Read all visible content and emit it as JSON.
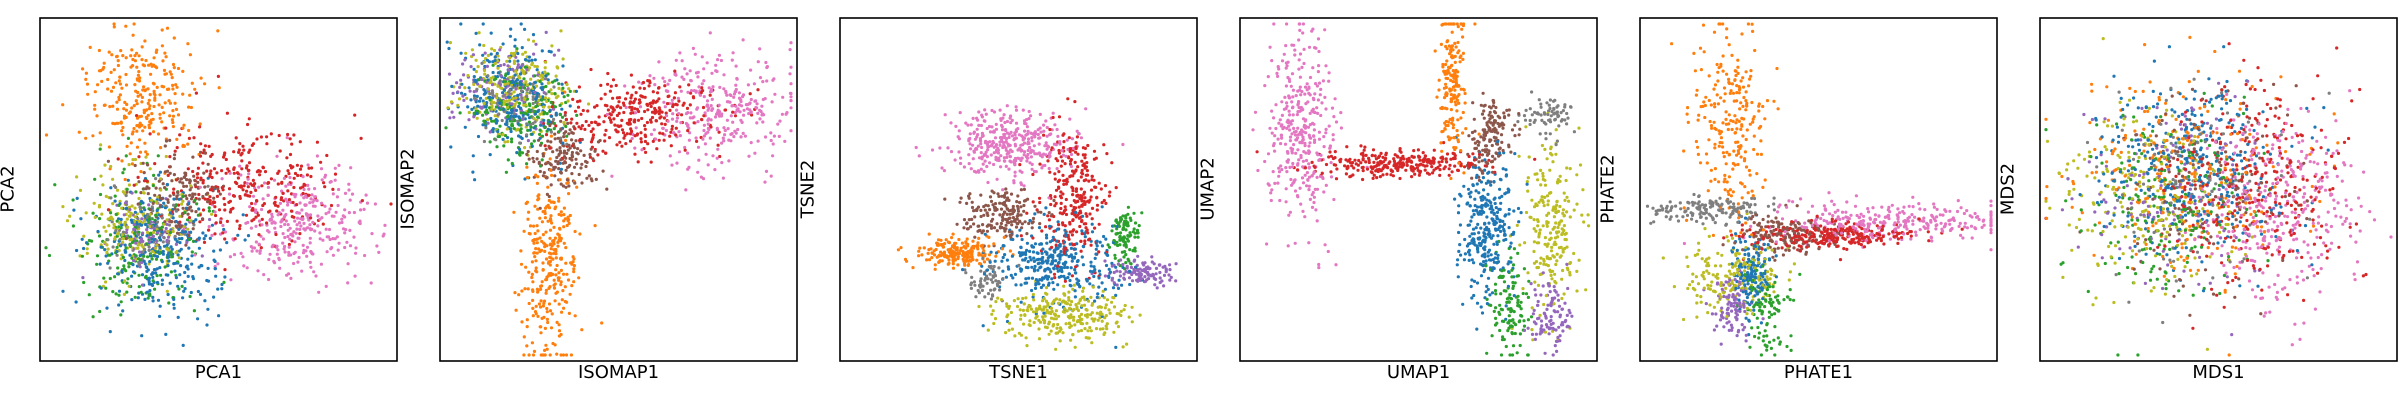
{
  "chart_data": [
    {
      "type": "scatter",
      "xlabel": "PCA1",
      "ylabel": "PCA2",
      "xlim": [
        0,
        100
      ],
      "ylim": [
        0,
        100
      ],
      "grid": false,
      "clusters": [
        {
          "color": "#ff7f0e",
          "cx": 28,
          "cy": 22,
          "sx": 8,
          "sy": 10,
          "n": 260
        },
        {
          "color": "#d62728",
          "cx": 58,
          "cy": 48,
          "sx": 14,
          "sy": 8,
          "n": 300
        },
        {
          "color": "#e377c2",
          "cx": 72,
          "cy": 60,
          "sx": 11,
          "sy": 9,
          "n": 320
        },
        {
          "color": "#2ca02c",
          "cx": 28,
          "cy": 66,
          "sx": 9,
          "sy": 10,
          "n": 200
        },
        {
          "color": "#bcbd22",
          "cx": 26,
          "cy": 60,
          "sx": 8,
          "sy": 8,
          "n": 200
        },
        {
          "color": "#1f77b4",
          "cx": 32,
          "cy": 68,
          "sx": 9,
          "sy": 10,
          "n": 300
        },
        {
          "color": "#8c564b",
          "cx": 38,
          "cy": 52,
          "sx": 6,
          "sy": 7,
          "n": 140
        },
        {
          "color": "#7f7f7f",
          "cx": 30,
          "cy": 62,
          "sx": 6,
          "sy": 6,
          "n": 80
        },
        {
          "color": "#9467bd",
          "cx": 31,
          "cy": 64,
          "sx": 6,
          "sy": 6,
          "n": 80
        }
      ]
    },
    {
      "type": "scatter",
      "xlabel": "ISOMAP1",
      "ylabel": "ISOMAP2",
      "xlim": [
        0,
        100
      ],
      "ylim": [
        0,
        100
      ],
      "grid": false,
      "clusters": [
        {
          "color": "#ff7f0e",
          "cx": 30,
          "cy": 70,
          "sx": 4,
          "sy": 16,
          "n": 300
        },
        {
          "color": "#d62728",
          "cx": 56,
          "cy": 28,
          "sx": 12,
          "sy": 6,
          "n": 300
        },
        {
          "color": "#e377c2",
          "cx": 78,
          "cy": 26,
          "sx": 11,
          "sy": 8,
          "n": 320
        },
        {
          "color": "#1f77b4",
          "cx": 18,
          "cy": 22,
          "sx": 8,
          "sy": 9,
          "n": 260
        },
        {
          "color": "#bcbd22",
          "cx": 20,
          "cy": 20,
          "sx": 8,
          "sy": 7,
          "n": 220
        },
        {
          "color": "#2ca02c",
          "cx": 22,
          "cy": 26,
          "sx": 7,
          "sy": 7,
          "n": 180
        },
        {
          "color": "#9467bd",
          "cx": 16,
          "cy": 20,
          "sx": 7,
          "sy": 6,
          "n": 120
        },
        {
          "color": "#8c564b",
          "cx": 34,
          "cy": 40,
          "sx": 5,
          "sy": 5,
          "n": 150
        },
        {
          "color": "#7f7f7f",
          "cx": 20,
          "cy": 24,
          "sx": 6,
          "sy": 6,
          "n": 80
        }
      ]
    },
    {
      "type": "scatter",
      "xlabel": "TSNE1",
      "ylabel": "TSNE2",
      "xlim": [
        0,
        100
      ],
      "ylim": [
        0,
        100
      ],
      "grid": false,
      "clusters": [
        {
          "color": "#e377c2",
          "cx": 48,
          "cy": 36,
          "sx": 9,
          "sy": 5,
          "n": 360
        },
        {
          "color": "#d62728",
          "cx": 66,
          "cy": 52,
          "sx": 5,
          "sy": 10,
          "n": 280
        },
        {
          "color": "#8c564b",
          "cx": 44,
          "cy": 58,
          "sx": 6,
          "sy": 4,
          "n": 180
        },
        {
          "color": "#1f77b4",
          "cx": 61,
          "cy": 72,
          "sx": 9,
          "sy": 6,
          "n": 340
        },
        {
          "color": "#ff7f0e",
          "cx": 32,
          "cy": 69,
          "sx": 6,
          "sy": 2,
          "n": 200
        },
        {
          "color": "#bcbd22",
          "cx": 63,
          "cy": 88,
          "sx": 9,
          "sy": 4,
          "n": 260
        },
        {
          "color": "#2ca02c",
          "cx": 81,
          "cy": 64,
          "sx": 2,
          "sy": 4,
          "n": 100
        },
        {
          "color": "#9467bd",
          "cx": 86,
          "cy": 75,
          "sx": 5,
          "sy": 2,
          "n": 120
        },
        {
          "color": "#7f7f7f",
          "cx": 41,
          "cy": 77,
          "sx": 3,
          "sy": 3,
          "n": 60
        }
      ]
    },
    {
      "type": "scatter",
      "xlabel": "UMAP1",
      "ylabel": "UMAP2",
      "xlim": [
        0,
        100
      ],
      "ylim": [
        0,
        100
      ],
      "grid": false,
      "clusters": [
        {
          "color": "#e377c2",
          "cx": 16,
          "cy": 32,
          "sx": 5,
          "sy": 14,
          "n": 340
        },
        {
          "color": "#d62728",
          "cx": 44,
          "cy": 42,
          "sx": 12,
          "sy": 2,
          "n": 280
        },
        {
          "color": "#ff7f0e",
          "cx": 60,
          "cy": 18,
          "sx": 2,
          "sy": 12,
          "n": 180
        },
        {
          "color": "#8c564b",
          "cx": 71,
          "cy": 34,
          "sx": 3,
          "sy": 6,
          "n": 150
        },
        {
          "color": "#1f77b4",
          "cx": 70,
          "cy": 62,
          "sx": 4,
          "sy": 10,
          "n": 300
        },
        {
          "color": "#bcbd22",
          "cx": 88,
          "cy": 62,
          "sx": 4,
          "sy": 12,
          "n": 220
        },
        {
          "color": "#2ca02c",
          "cx": 76,
          "cy": 86,
          "sx": 3,
          "sy": 8,
          "n": 120
        },
        {
          "color": "#9467bd",
          "cx": 88,
          "cy": 88,
          "sx": 3,
          "sy": 6,
          "n": 100
        },
        {
          "color": "#7f7f7f",
          "cx": 88,
          "cy": 28,
          "sx": 4,
          "sy": 3,
          "n": 70
        }
      ]
    },
    {
      "type": "scatter",
      "xlabel": "PHATE1",
      "ylabel": "PHATE2",
      "xlim": [
        0,
        100
      ],
      "ylim": [
        0,
        100
      ],
      "grid": false,
      "clusters": [
        {
          "color": "#ff7f0e",
          "cx": 24,
          "cy": 30,
          "sx": 5,
          "sy": 16,
          "n": 240
        },
        {
          "color": "#e377c2",
          "cx": 72,
          "cy": 60,
          "sx": 18,
          "sy": 3,
          "n": 300
        },
        {
          "color": "#d62728",
          "cx": 52,
          "cy": 64,
          "sx": 12,
          "sy": 2,
          "n": 260
        },
        {
          "color": "#7f7f7f",
          "cx": 18,
          "cy": 56,
          "sx": 8,
          "sy": 2,
          "n": 150
        },
        {
          "color": "#8c564b",
          "cx": 40,
          "cy": 64,
          "sx": 6,
          "sy": 3,
          "n": 150
        },
        {
          "color": "#bcbd22",
          "cx": 25,
          "cy": 76,
          "sx": 7,
          "sy": 6,
          "n": 180
        },
        {
          "color": "#1f77b4",
          "cx": 31,
          "cy": 74,
          "sx": 3,
          "sy": 6,
          "n": 160
        },
        {
          "color": "#9467bd",
          "cx": 25,
          "cy": 86,
          "sx": 3,
          "sy": 5,
          "n": 100
        },
        {
          "color": "#2ca02c",
          "cx": 35,
          "cy": 86,
          "sx": 3,
          "sy": 6,
          "n": 100
        }
      ]
    },
    {
      "type": "scatter",
      "xlabel": "MDS1",
      "ylabel": "MDS2",
      "xlim": [
        0,
        100
      ],
      "ylim": [
        0,
        100
      ],
      "grid": false,
      "clusters": [
        {
          "color": "#e377c2",
          "cx": 68,
          "cy": 56,
          "sx": 12,
          "sy": 14,
          "n": 340
        },
        {
          "color": "#d62728",
          "cx": 60,
          "cy": 48,
          "sx": 13,
          "sy": 14,
          "n": 320
        },
        {
          "color": "#1f77b4",
          "cx": 42,
          "cy": 44,
          "sx": 14,
          "sy": 14,
          "n": 340
        },
        {
          "color": "#ff7f0e",
          "cx": 40,
          "cy": 46,
          "sx": 15,
          "sy": 15,
          "n": 260
        },
        {
          "color": "#bcbd22",
          "cx": 30,
          "cy": 52,
          "sx": 12,
          "sy": 14,
          "n": 220
        },
        {
          "color": "#2ca02c",
          "cx": 34,
          "cy": 56,
          "sx": 13,
          "sy": 14,
          "n": 200
        },
        {
          "color": "#9467bd",
          "cx": 38,
          "cy": 52,
          "sx": 14,
          "sy": 15,
          "n": 150
        },
        {
          "color": "#8c564b",
          "cx": 46,
          "cy": 50,
          "sx": 13,
          "sy": 14,
          "n": 150
        },
        {
          "color": "#7f7f7f",
          "cx": 44,
          "cy": 50,
          "sx": 14,
          "sy": 14,
          "n": 100
        }
      ]
    }
  ]
}
